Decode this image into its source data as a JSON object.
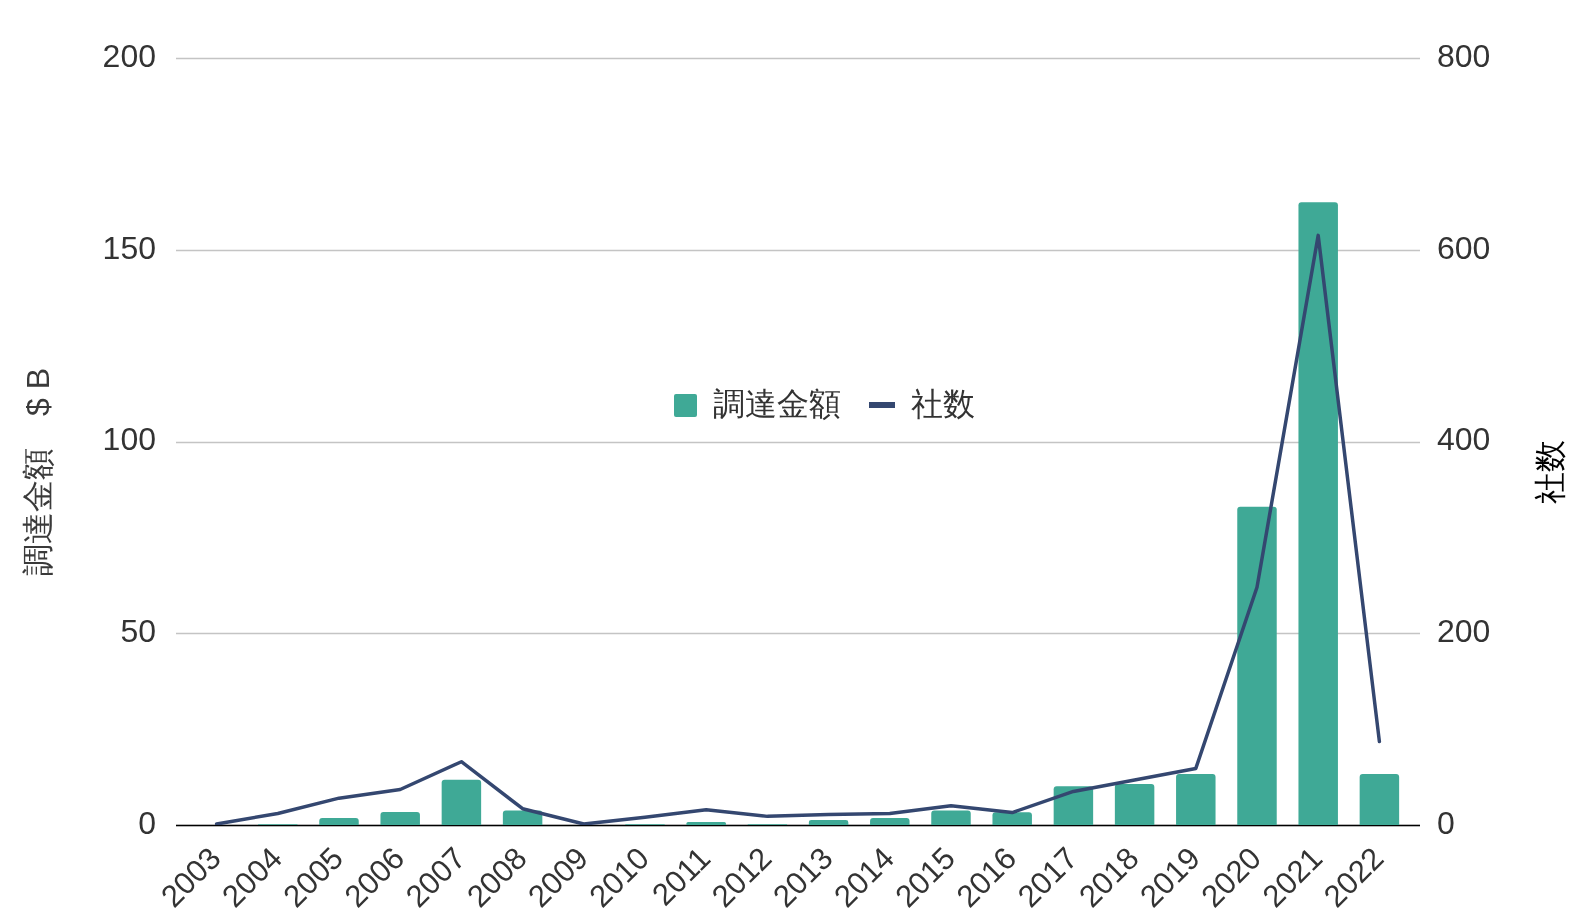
{
  "chart_data": {
    "type": "bar",
    "categories": [
      "2003",
      "2004",
      "2005",
      "2006",
      "2007",
      "2008",
      "2009",
      "2010",
      "2011",
      "2012",
      "2013",
      "2014",
      "2015",
      "2016",
      "2017",
      "2018",
      "2019",
      "2020",
      "2021",
      "2022"
    ],
    "series": [
      {
        "name": "調達金額",
        "color": "#3fa996",
        "values": [
          0,
          0.2,
          1.8,
          3.4,
          11.8,
          3.8,
          0,
          0.2,
          0.8,
          0.2,
          1.3,
          1.8,
          3.8,
          3.3,
          10.1,
          10.7,
          13.3,
          83.0,
          162.4,
          13.3
        ]
      },
      {
        "name": "社数",
        "type": "line",
        "axis": "y2",
        "color": "#344770",
        "values": [
          1,
          12,
          28,
          37,
          66,
          17,
          1,
          8,
          16,
          9,
          11,
          12,
          20,
          13,
          35,
          47,
          59,
          248,
          615,
          87
        ]
      }
    ],
    "ylabel": "調達金額　$ B",
    "y2label": "社数",
    "ylim": [
      0,
      200
    ],
    "yticks": [
      0,
      50,
      100,
      150,
      200
    ],
    "y2lim": [
      0,
      800
    ],
    "y2ticks": [
      0,
      200,
      400,
      600,
      800
    ],
    "grid": "y",
    "legend": "center",
    "marker": "none"
  }
}
